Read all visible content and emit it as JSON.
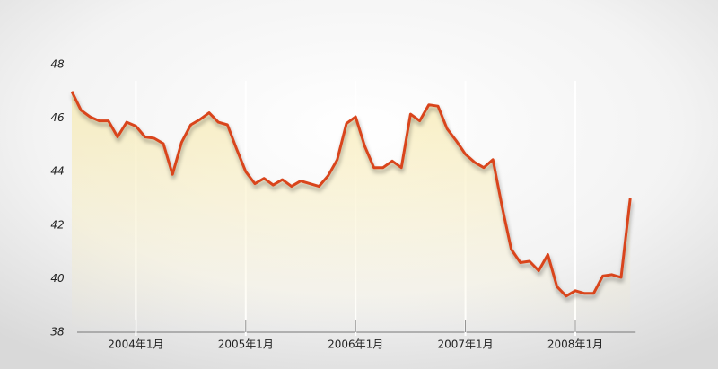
{
  "chart_data": {
    "type": "line",
    "categories": [
      null,
      null,
      null,
      null,
      null,
      null,
      null,
      "2004年1月",
      null,
      null,
      null,
      null,
      null,
      null,
      null,
      null,
      null,
      null,
      null,
      "2005年1月",
      null,
      null,
      null,
      null,
      null,
      null,
      null,
      null,
      null,
      null,
      null,
      "2006年1月",
      null,
      null,
      null,
      null,
      null,
      null,
      null,
      null,
      null,
      null,
      null,
      "2007年1月",
      null,
      null,
      null,
      null,
      null,
      null,
      null,
      null,
      null,
      null,
      null,
      "2008年1月",
      null,
      null,
      null,
      null,
      null,
      null
    ],
    "values": [
      47.0,
      46.3,
      46.05,
      45.9,
      45.9,
      45.3,
      45.85,
      45.7,
      45.3,
      45.25,
      45.05,
      43.9,
      45.1,
      45.75,
      45.95,
      46.2,
      45.85,
      45.75,
      44.85,
      44.0,
      43.55,
      43.75,
      43.5,
      43.7,
      43.45,
      43.65,
      43.55,
      43.45,
      43.85,
      44.45,
      45.8,
      46.05,
      44.95,
      44.15,
      44.15,
      44.4,
      44.15,
      46.15,
      45.9,
      46.5,
      46.45,
      45.6,
      45.15,
      44.65,
      44.35,
      44.15,
      44.45,
      42.7,
      41.1,
      40.6,
      40.65,
      40.3,
      40.9,
      39.7,
      39.35,
      39.55,
      39.45,
      39.45,
      40.1,
      40.15,
      40.05,
      43.0
    ],
    "color": "#d9441c",
    "ylim": [
      38,
      48
    ],
    "yticks": [
      38,
      40,
      42,
      44,
      46,
      48
    ]
  }
}
